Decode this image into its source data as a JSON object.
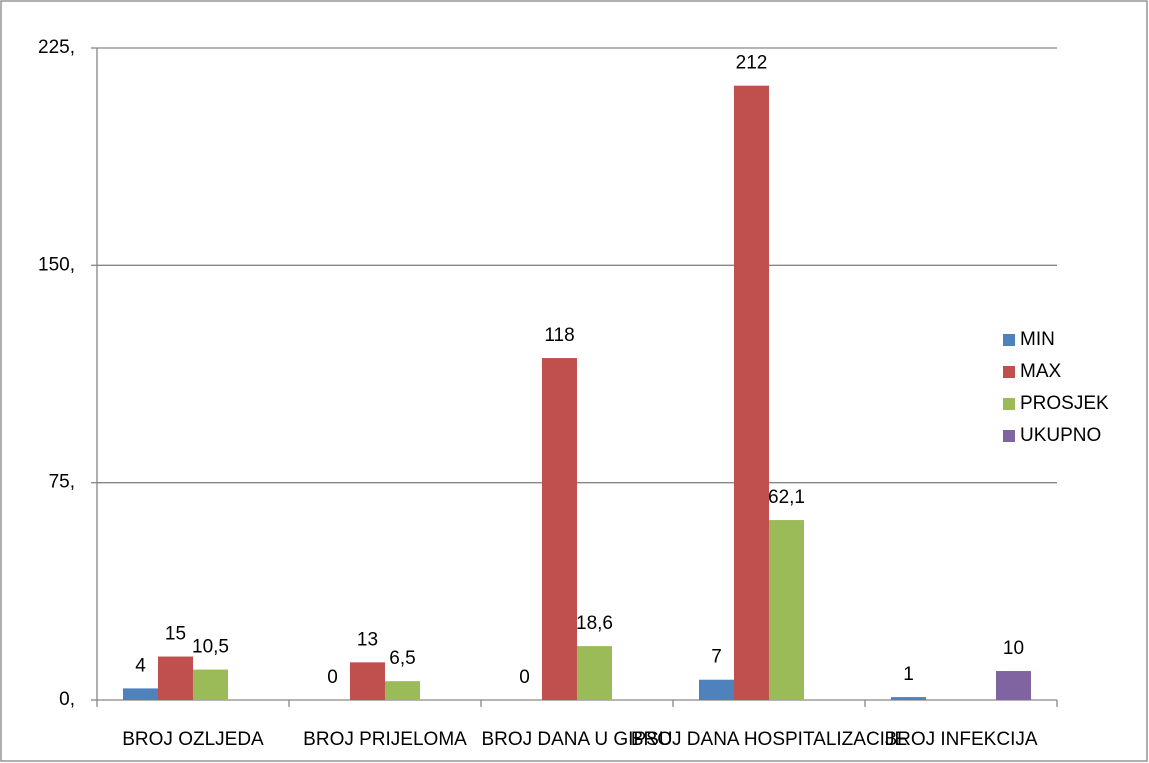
{
  "chart_data": {
    "type": "bar",
    "categories": [
      "BROJ OZLJEDA",
      "BROJ PRIJELOMA",
      "BROJ DANA U GIPSU",
      "BROJ DANA HOSPITALIZACIJE",
      "BROJ INFEKCIJA"
    ],
    "series": [
      {
        "name": "MIN",
        "color": "#4f81bd",
        "values": [
          4,
          0,
          0,
          7,
          1
        ]
      },
      {
        "name": "MAX",
        "color": "#c0504d",
        "values": [
          15,
          13,
          118,
          212,
          null
        ]
      },
      {
        "name": "PROSJEK",
        "color": "#9bbb59",
        "values": [
          10.5,
          6.5,
          18.6,
          62.1,
          null
        ],
        "value_labels": [
          "10,5",
          "6,5",
          "18,6",
          "62,1",
          null
        ]
      },
      {
        "name": "UKUPNO",
        "color": "#8064a2",
        "values": [
          null,
          null,
          null,
          null,
          10
        ]
      }
    ],
    "ylim": [
      0,
      225
    ],
    "yticks": [
      {
        "value": 0,
        "label": "0,"
      },
      {
        "value": 75,
        "label": "75,"
      },
      {
        "value": 150,
        "label": "150,"
      },
      {
        "value": 225,
        "label": "225,"
      }
    ],
    "grid": true,
    "legend": "right"
  }
}
